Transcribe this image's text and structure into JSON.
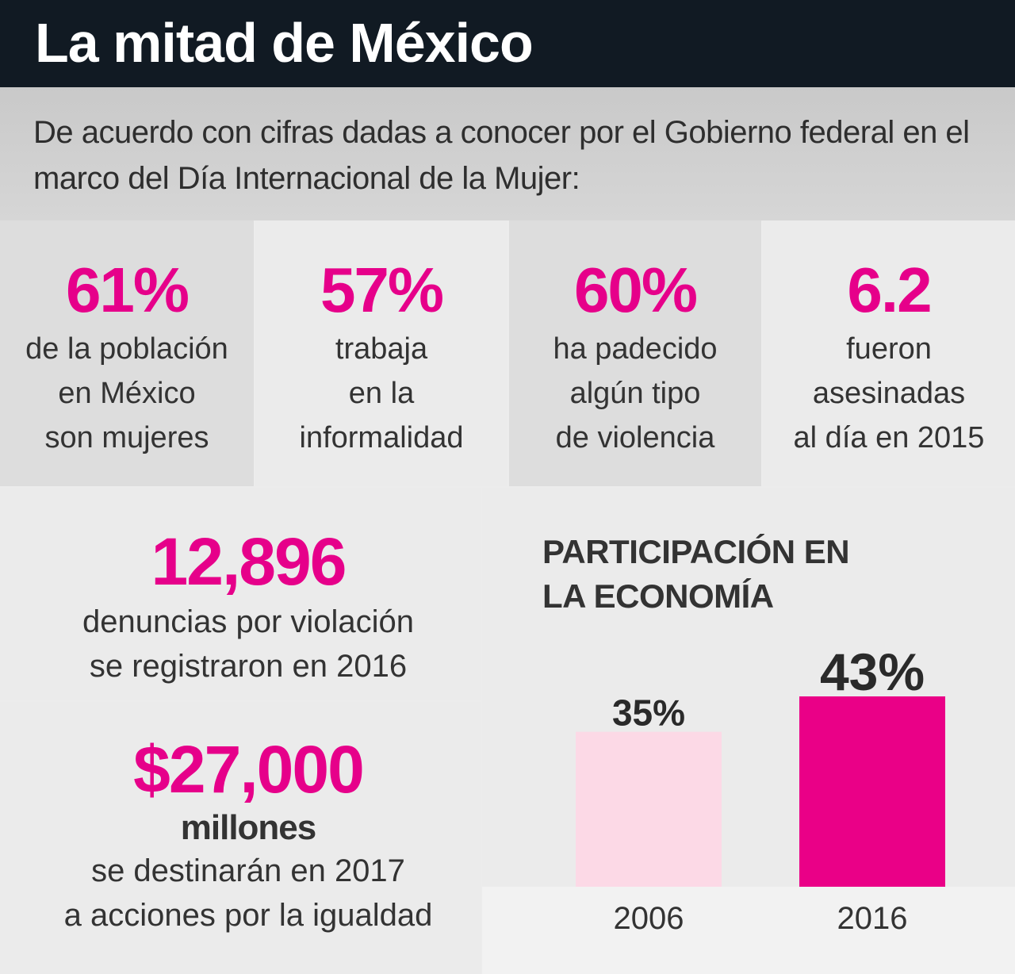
{
  "header": {
    "title": "La mitad de México"
  },
  "intro": {
    "text": "De acuerdo con cifras dadas a conocer por el Gobierno federal en el marco del Día Internacional de la Mujer:"
  },
  "stats": [
    {
      "value": "61%",
      "lines": [
        "de la población",
        "en México",
        "son mujeres"
      ]
    },
    {
      "value": "57%",
      "lines": [
        "trabaja",
        "en la",
        "informalidad"
      ]
    },
    {
      "value": "60%",
      "lines": [
        "ha padecido",
        "algún tipo",
        "de violencia"
      ]
    },
    {
      "value": "6.2",
      "lines": [
        "fueron",
        "asesinadas",
        "al día en 2015"
      ]
    }
  ],
  "denuncias": {
    "value": "12,896",
    "lines": [
      "denuncias por violación",
      "se registraron en 2016"
    ]
  },
  "presupuesto": {
    "value": "$27,000",
    "unit": "millones",
    "lines": [
      "se destinarán en 2017",
      "a acciones por la igualdad"
    ]
  },
  "colors": {
    "accent": "#e6008a",
    "bar_light": "#fcd9e6",
    "bar_dark": "#ea0087",
    "header_bg": "#111a23"
  },
  "chart_data": {
    "type": "bar",
    "title": "PARTICIPACIÓN EN LA ECONOMÍA",
    "categories": [
      "2006",
      "2016"
    ],
    "values": [
      35,
      43
    ],
    "value_labels": [
      "35%",
      "43%"
    ],
    "ylim": [
      0,
      43
    ]
  }
}
